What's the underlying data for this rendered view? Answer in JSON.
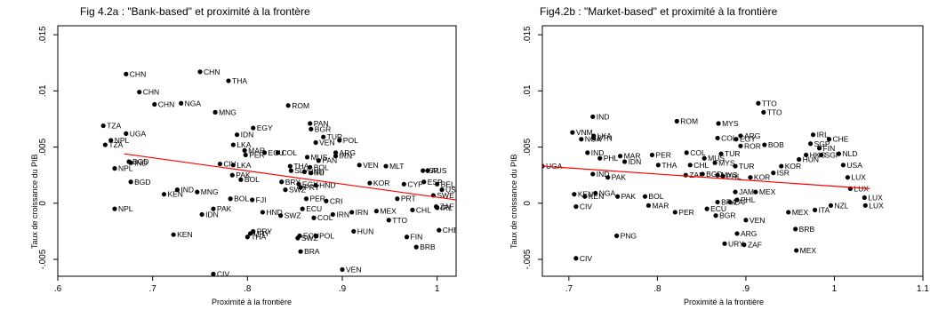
{
  "chart_data": [
    {
      "type": "scatter",
      "title": "Fig 4.2a : \"Bank-based\" et proximité à la frontère",
      "xlabel": "Proximité à la frontière",
      "ylabel": "Taux de croissance du PIB",
      "xlim": [
        0.6,
        1.02
      ],
      "ylim": [
        -0.0065,
        0.0158
      ],
      "xticks": [
        0.6,
        0.7,
        0.8,
        0.9,
        1
      ],
      "xtick_labels": [
        ".6",
        ".7",
        ".8",
        ".9",
        "1"
      ],
      "yticks": [
        -0.005,
        0,
        0.005,
        0.01,
        0.015
      ],
      "ytick_labels": [
        "-.005",
        "0",
        ".005",
        ".01",
        ".015"
      ],
      "grid": false,
      "colors": {
        "points": "#000000",
        "fit_line": "#ff0000"
      },
      "fit_line": {
        "x": [
          0.67,
          1.02
        ],
        "y": [
          0.0044,
          0.0003
        ]
      },
      "points": [
        {
          "label": "CHN",
          "x": 0.672,
          "y": 0.0115
        },
        {
          "label": "CHN",
          "x": 0.75,
          "y": 0.0117
        },
        {
          "label": "CHN",
          "x": 0.686,
          "y": 0.0099
        },
        {
          "label": "CHN",
          "x": 0.702,
          "y": 0.0088
        },
        {
          "label": "THA",
          "x": 0.78,
          "y": 0.0109
        },
        {
          "label": "NGA",
          "x": 0.73,
          "y": 0.0089
        },
        {
          "label": "MNG",
          "x": 0.766,
          "y": 0.0081
        },
        {
          "label": "ROM",
          "x": 0.843,
          "y": 0.0087
        },
        {
          "label": "TZA",
          "x": 0.648,
          "y": 0.0069
        },
        {
          "label": "UGA",
          "x": 0.672,
          "y": 0.0062
        },
        {
          "label": "NPL",
          "x": 0.656,
          "y": 0.0056
        },
        {
          "label": "TZA",
          "x": 0.65,
          "y": 0.0052
        },
        {
          "label": "PAN",
          "x": 0.866,
          "y": 0.0071
        },
        {
          "label": "BGR",
          "x": 0.867,
          "y": 0.0066
        },
        {
          "label": "EGY",
          "x": 0.806,
          "y": 0.0067
        },
        {
          "label": "IDN",
          "x": 0.789,
          "y": 0.0061
        },
        {
          "label": "TUR",
          "x": 0.88,
          "y": 0.0059
        },
        {
          "label": "VEN",
          "x": 0.872,
          "y": 0.0054
        },
        {
          "label": "POL",
          "x": 0.897,
          "y": 0.0056
        },
        {
          "label": "LKA",
          "x": 0.785,
          "y": 0.0052
        },
        {
          "label": "MAR",
          "x": 0.797,
          "y": 0.0047
        },
        {
          "label": "ECU",
          "x": 0.818,
          "y": 0.0045
        },
        {
          "label": "COL",
          "x": 0.832,
          "y": 0.0045
        },
        {
          "label": "PER",
          "x": 0.798,
          "y": 0.0043
        },
        {
          "label": "ARG",
          "x": 0.893,
          "y": 0.0045
        },
        {
          "label": "MUS",
          "x": 0.863,
          "y": 0.0041
        },
        {
          "label": "PAN",
          "x": 0.875,
          "y": 0.0038
        },
        {
          "label": "IRN",
          "x": 0.893,
          "y": 0.0042
        },
        {
          "label": "BGD",
          "x": 0.675,
          "y": 0.0037
        },
        {
          "label": "IND",
          "x": 0.677,
          "y": 0.0036
        },
        {
          "label": "NPL",
          "x": 0.66,
          "y": 0.0031
        },
        {
          "label": "CIV",
          "x": 0.771,
          "y": 0.0035
        },
        {
          "label": "LKA",
          "x": 0.785,
          "y": 0.0034
        },
        {
          "label": "THA",
          "x": 0.845,
          "y": 0.0033
        },
        {
          "label": "BOL",
          "x": 0.866,
          "y": 0.0032
        },
        {
          "label": "VEN",
          "x": 0.918,
          "y": 0.0034
        },
        {
          "label": "SLV",
          "x": 0.846,
          "y": 0.0029
        },
        {
          "label": "HND",
          "x": 0.86,
          "y": 0.0028
        },
        {
          "label": "IRI",
          "x": 0.867,
          "y": 0.0027
        },
        {
          "label": "MLT",
          "x": 0.946,
          "y": 0.0033
        },
        {
          "label": "PAK",
          "x": 0.784,
          "y": 0.0025
        },
        {
          "label": "BGD",
          "x": 0.677,
          "y": 0.0019
        },
        {
          "label": "BOL",
          "x": 0.793,
          "y": 0.0021
        },
        {
          "label": "BRY",
          "x": 0.836,
          "y": 0.0019
        },
        {
          "label": "EGY",
          "x": 0.854,
          "y": 0.0017
        },
        {
          "label": "HND",
          "x": 0.872,
          "y": 0.0016
        },
        {
          "label": "PRY",
          "x": 0.856,
          "y": 0.0014
        },
        {
          "label": "KOR",
          "x": 0.929,
          "y": 0.0018
        },
        {
          "label": "CYP",
          "x": 0.965,
          "y": 0.0017
        },
        {
          "label": "ISR",
          "x": 0.985,
          "y": 0.0029
        },
        {
          "label": "SWZ",
          "x": 0.84,
          "y": 0.0012
        },
        {
          "label": "AUS",
          "x": 0.99,
          "y": 0.0029
        },
        {
          "label": "ESP",
          "x": 0.986,
          "y": 0.0019
        },
        {
          "label": "BEL",
          "x": 1.0,
          "y": 0.0017
        },
        {
          "label": "IND",
          "x": 0.726,
          "y": 0.0012
        },
        {
          "label": "MNG",
          "x": 0.747,
          "y": 0.001
        },
        {
          "label": "KEN",
          "x": 0.712,
          "y": 0.0008
        },
        {
          "label": "BOL",
          "x": 0.782,
          "y": 0.0004
        },
        {
          "label": "FJI",
          "x": 0.805,
          "y": 0.0003
        },
        {
          "label": "PER",
          "x": 0.862,
          "y": 0.0004
        },
        {
          "label": "CRI",
          "x": 0.883,
          "y": 0.0002
        },
        {
          "label": "PRT",
          "x": 0.958,
          "y": 0.0004
        },
        {
          "label": "NPL",
          "x": 0.66,
          "y": -0.0005
        },
        {
          "label": "PAK",
          "x": 0.764,
          "y": -0.0005
        },
        {
          "label": "IDN",
          "x": 0.752,
          "y": -0.001
        },
        {
          "label": "HND",
          "x": 0.816,
          "y": -0.0008
        },
        {
          "label": "SWZ",
          "x": 0.835,
          "y": -0.0011
        },
        {
          "label": "ECU",
          "x": 0.858,
          "y": -0.0005
        },
        {
          "label": "COL",
          "x": 0.87,
          "y": -0.0013
        },
        {
          "label": "IRN",
          "x": 0.89,
          "y": -0.001
        },
        {
          "label": "IRN",
          "x": 0.91,
          "y": -0.0008
        },
        {
          "label": "MEX",
          "x": 0.936,
          "y": -0.0007
        },
        {
          "label": "CHL",
          "x": 0.974,
          "y": -0.0006
        },
        {
          "label": "TTO",
          "x": 0.949,
          "y": -0.0015
        },
        {
          "label": "ZAF",
          "x": 0.999,
          "y": -0.0003
        },
        {
          "label": "KEN",
          "x": 0.722,
          "y": -0.0028
        },
        {
          "label": "PRY",
          "x": 0.806,
          "y": -0.0025
        },
        {
          "label": "URY",
          "x": 0.803,
          "y": -0.0027
        },
        {
          "label": "THA",
          "x": 0.8,
          "y": -0.003
        },
        {
          "label": "SWZ",
          "x": 0.853,
          "y": -0.0031
        },
        {
          "label": "ECU",
          "x": 0.855,
          "y": -0.0029
        },
        {
          "label": "POL",
          "x": 0.872,
          "y": -0.0029
        },
        {
          "label": "HUN",
          "x": 0.912,
          "y": -0.0025
        },
        {
          "label": "FIN",
          "x": 0.968,
          "y": -0.003
        },
        {
          "label": "CHE",
          "x": 1.002,
          "y": -0.0024
        },
        {
          "label": "BRB",
          "x": 0.978,
          "y": -0.0039
        },
        {
          "label": "BRA",
          "x": 0.856,
          "y": -0.0043
        },
        {
          "label": "VEN",
          "x": 0.9,
          "y": -0.0059
        },
        {
          "label": "CIV",
          "x": 0.764,
          "y": -0.0063
        },
        {
          "label": "IRL",
          "x": 1.0,
          "y": -0.0004
        },
        {
          "label": "SWE",
          "x": 0.996,
          "y": 0.0007
        },
        {
          "label": "USA",
          "x": 1.005,
          "y": 0.0012
        }
      ]
    },
    {
      "type": "scatter",
      "title": "Fig4.2b : \"Market-based\" et proximité à la frontière",
      "xlabel": "Proximité à la frontière",
      "ylabel": "Taux de croissance du PIB",
      "xlim": [
        0.67,
        1.1
      ],
      "ylim": [
        -0.0065,
        0.0158
      ],
      "xticks": [
        0.7,
        0.8,
        0.9,
        1,
        1.1
      ],
      "xtick_labels": [
        ".7",
        ".8",
        ".9",
        "1",
        "1.1"
      ],
      "yticks": [
        -0.005,
        0,
        0.005,
        0.01,
        0.015
      ],
      "ytick_labels": [
        "-.005",
        "0",
        ".005",
        ".01",
        ".015"
      ],
      "grid": false,
      "colors": {
        "points": "#000000",
        "fit_line": "#ff0000"
      },
      "fit_line": {
        "x": [
          0.67,
          1.04
        ],
        "y": [
          0.0033,
          0.0013
        ]
      },
      "points": [
        {
          "label": "TTO",
          "x": 0.914,
          "y": 0.0089
        },
        {
          "label": "TTO",
          "x": 0.92,
          "y": 0.0081
        },
        {
          "label": "IND",
          "x": 0.727,
          "y": 0.0077
        },
        {
          "label": "ROM",
          "x": 0.822,
          "y": 0.0073
        },
        {
          "label": "MYS",
          "x": 0.869,
          "y": 0.0071
        },
        {
          "label": "VNM",
          "x": 0.704,
          "y": 0.0063
        },
        {
          "label": "NGA",
          "x": 0.714,
          "y": 0.0057
        },
        {
          "label": "LKA",
          "x": 0.728,
          "y": 0.006
        },
        {
          "label": "BTN",
          "x": 0.728,
          "y": 0.0058
        },
        {
          "label": "ARG",
          "x": 0.894,
          "y": 0.006
        },
        {
          "label": "IRL",
          "x": 0.976,
          "y": 0.0061
        },
        {
          "label": "COL",
          "x": 0.868,
          "y": 0.0058
        },
        {
          "label": "EGY",
          "x": 0.889,
          "y": 0.0057
        },
        {
          "label": "CHE",
          "x": 0.994,
          "y": 0.0057
        },
        {
          "label": "SGP",
          "x": 0.973,
          "y": 0.0053
        },
        {
          "label": "ROR",
          "x": 0.894,
          "y": 0.0051
        },
        {
          "label": "BOB",
          "x": 0.921,
          "y": 0.0052
        },
        {
          "label": "IND",
          "x": 0.721,
          "y": 0.0045
        },
        {
          "label": "FIN",
          "x": 0.983,
          "y": 0.0049
        },
        {
          "label": "MAR",
          "x": 0.758,
          "y": 0.0042
        },
        {
          "label": "PER",
          "x": 0.794,
          "y": 0.0043
        },
        {
          "label": "COL",
          "x": 0.833,
          "y": 0.0045
        },
        {
          "label": "TUR",
          "x": 0.872,
          "y": 0.0044
        },
        {
          "label": "HKG",
          "x": 0.968,
          "y": 0.0043
        },
        {
          "label": "SGP",
          "x": 0.985,
          "y": 0.0043
        },
        {
          "label": "NLD",
          "x": 1.005,
          "y": 0.0044
        },
        {
          "label": "PHL",
          "x": 0.735,
          "y": 0.004
        },
        {
          "label": "IDN",
          "x": 0.763,
          "y": 0.0037
        },
        {
          "label": "MUS",
          "x": 0.853,
          "y": 0.004
        },
        {
          "label": "HUN",
          "x": 0.96,
          "y": 0.0039
        },
        {
          "label": "THA",
          "x": 0.801,
          "y": 0.0034
        },
        {
          "label": "CHL",
          "x": 0.837,
          "y": 0.0034
        },
        {
          "label": "MYS",
          "x": 0.865,
          "y": 0.0036
        },
        {
          "label": "TUR",
          "x": 0.888,
          "y": 0.0033
        },
        {
          "label": "KOR",
          "x": 0.94,
          "y": 0.0033
        },
        {
          "label": "USA",
          "x": 1.01,
          "y": 0.0034
        },
        {
          "label": "UGA",
          "x": 0.67,
          "y": 0.0033
        },
        {
          "label": "IND",
          "x": 0.727,
          "y": 0.0026
        },
        {
          "label": "PAK",
          "x": 0.744,
          "y": 0.0023
        },
        {
          "label": "ZAF",
          "x": 0.832,
          "y": 0.0025
        },
        {
          "label": "BGD",
          "x": 0.851,
          "y": 0.0026
        },
        {
          "label": "MYS",
          "x": 0.868,
          "y": 0.0025
        },
        {
          "label": "PHL",
          "x": 0.874,
          "y": 0.0024
        },
        {
          "label": "KOR",
          "x": 0.905,
          "y": 0.0023
        },
        {
          "label": "ISR",
          "x": 0.931,
          "y": 0.0027
        },
        {
          "label": "LUX",
          "x": 1.015,
          "y": 0.0023
        },
        {
          "label": "LUX",
          "x": 1.018,
          "y": 0.0013
        },
        {
          "label": "LUX",
          "x": 1.034,
          "y": 0.0005
        },
        {
          "label": "LUX",
          "x": 1.035,
          "y": -0.0002
        },
        {
          "label": "KEN",
          "x": 0.706,
          "y": 0.0008
        },
        {
          "label": "NGA",
          "x": 0.73,
          "y": 0.0009
        },
        {
          "label": "KEN",
          "x": 0.718,
          "y": 0.0006
        },
        {
          "label": "PAK",
          "x": 0.755,
          "y": 0.0006
        },
        {
          "label": "BOL",
          "x": 0.786,
          "y": 0.0006
        },
        {
          "label": "JAM",
          "x": 0.888,
          "y": 0.001
        },
        {
          "label": "MEX",
          "x": 0.911,
          "y": 0.001
        },
        {
          "label": "BRA",
          "x": 0.868,
          "y": 0.0001
        },
        {
          "label": "ZAF",
          "x": 0.882,
          "y": 0.0001
        },
        {
          "label": "PHL",
          "x": 0.89,
          "y": 0.0003
        },
        {
          "label": "CIV",
          "x": 0.708,
          "y": -0.0003
        },
        {
          "label": "MAR",
          "x": 0.79,
          "y": -0.0002
        },
        {
          "label": "PER",
          "x": 0.82,
          "y": -0.0008
        },
        {
          "label": "ECU",
          "x": 0.856,
          "y": -0.0005
        },
        {
          "label": "BGR",
          "x": 0.866,
          "y": -0.0011
        },
        {
          "label": "VEN",
          "x": 0.9,
          "y": -0.0015
        },
        {
          "label": "MEX",
          "x": 0.948,
          "y": -0.0008
        },
        {
          "label": "ITA",
          "x": 0.978,
          "y": -0.0006
        },
        {
          "label": "NZL",
          "x": 0.996,
          "y": -0.0002
        },
        {
          "label": "BRB",
          "x": 0.956,
          "y": -0.0023
        },
        {
          "label": "PNG",
          "x": 0.754,
          "y": -0.0029
        },
        {
          "label": "ARG",
          "x": 0.89,
          "y": -0.0027
        },
        {
          "label": "URY",
          "x": 0.876,
          "y": -0.0036
        },
        {
          "label": "ZAF",
          "x": 0.898,
          "y": -0.0037
        },
        {
          "label": "MEX",
          "x": 0.957,
          "y": -0.0042
        },
        {
          "label": "CIV",
          "x": 0.708,
          "y": -0.0049
        }
      ]
    }
  ]
}
